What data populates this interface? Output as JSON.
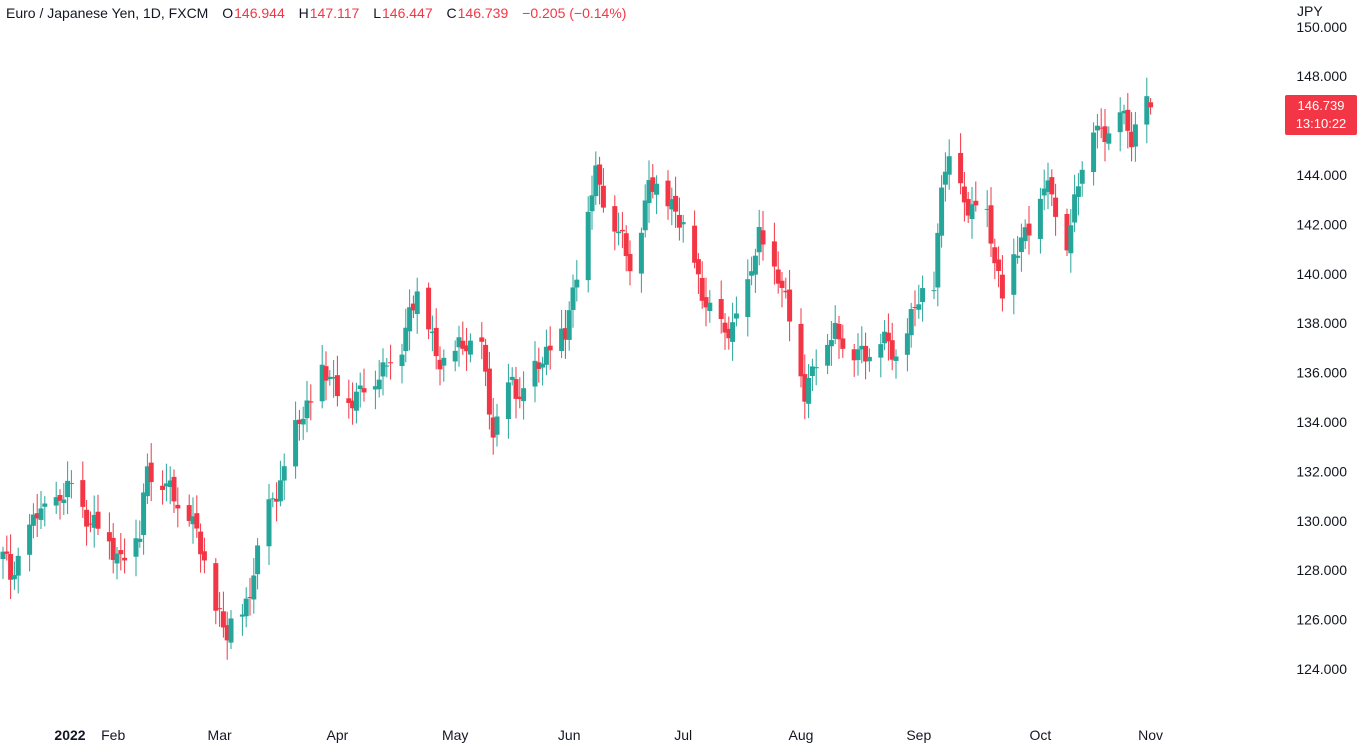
{
  "header": {
    "symbol": "Euro / Japanese Yen, 1D, FXCM",
    "open_label": "O",
    "open": "146.944",
    "high_label": "H",
    "high": "147.117",
    "low_label": "L",
    "low": "146.447",
    "close_label": "C",
    "close": "146.739",
    "change": "−0.205 (−0.14%)"
  },
  "axis": {
    "unit": "JPY"
  },
  "last_price": {
    "value": "146.739",
    "countdown": "13:10:22"
  },
  "colors": {
    "up": "#26a69a",
    "down": "#f23645",
    "axis_text": "#131722",
    "background": "#ffffff"
  },
  "chart_data": {
    "type": "candlestick",
    "title": "Euro / Japanese Yen, 1D, FXCM",
    "ylabel": "JPY",
    "ylim": [
      123,
      150.5
    ],
    "grid": false,
    "y_ticks": [
      "124.000",
      "126.000",
      "128.000",
      "130.000",
      "132.000",
      "134.000",
      "136.000",
      "138.000",
      "140.000",
      "142.000",
      "144.000",
      "146.000",
      "148.000",
      "150.000"
    ],
    "x_ticks": [
      "2022",
      "Feb",
      "Mar",
      "Apr",
      "May",
      "Jun",
      "Jul",
      "Aug",
      "Sep",
      "Oct",
      "Nov"
    ],
    "anchors": [
      [
        "2022-01-03",
        128.5
      ],
      [
        "2022-01-05",
        127.8
      ],
      [
        "2022-01-12",
        130.2
      ],
      [
        "2022-01-18",
        130.9
      ],
      [
        "2022-01-21",
        131.2
      ],
      [
        "2022-01-28",
        129.6
      ],
      [
        "2022-02-03",
        128.6
      ],
      [
        "2022-02-08",
        129.4
      ],
      [
        "2022-02-10",
        132.4
      ],
      [
        "2022-02-14",
        131.4
      ],
      [
        "2022-02-21",
        130.4
      ],
      [
        "2022-02-25",
        128.2
      ],
      [
        "2022-03-03",
        125.3
      ],
      [
        "2022-03-07",
        126.2
      ],
      [
        "2022-03-14",
        130.4
      ],
      [
        "2022-03-21",
        133.5
      ],
      [
        "2022-03-28",
        136.1
      ],
      [
        "2022-03-31",
        135.3
      ],
      [
        "2022-04-06",
        134.9
      ],
      [
        "2022-04-12",
        136.1
      ],
      [
        "2022-04-18",
        137.0
      ],
      [
        "2022-04-20",
        138.6
      ],
      [
        "2022-04-22",
        139.5
      ],
      [
        "2022-04-27",
        136.6
      ],
      [
        "2022-05-02",
        136.8
      ],
      [
        "2022-05-09",
        137.2
      ],
      [
        "2022-05-12",
        133.1
      ],
      [
        "2022-05-17",
        136.1
      ],
      [
        "2022-05-19",
        134.6
      ],
      [
        "2022-05-24",
        136.6
      ],
      [
        "2022-05-31",
        137.6
      ],
      [
        "2022-06-03",
        140.3
      ],
      [
        "2022-06-08",
        143.9
      ],
      [
        "2022-06-13",
        142.1
      ],
      [
        "2022-06-17",
        140.2
      ],
      [
        "2022-06-22",
        143.6
      ],
      [
        "2022-06-29",
        142.8
      ],
      [
        "2022-07-05",
        139.7
      ],
      [
        "2022-07-12",
        137.3
      ],
      [
        "2022-07-18",
        139.4
      ],
      [
        "2022-07-21",
        141.4
      ],
      [
        "2022-07-26",
        140.0
      ],
      [
        "2022-08-02",
        135.4
      ],
      [
        "2022-08-05",
        136.4
      ],
      [
        "2022-08-10",
        137.9
      ],
      [
        "2022-08-15",
        136.6
      ],
      [
        "2022-08-22",
        137.3
      ],
      [
        "2022-08-26",
        136.6
      ],
      [
        "2022-08-31",
        138.6
      ],
      [
        "2022-09-05",
        139.4
      ],
      [
        "2022-09-07",
        143.9
      ],
      [
        "2022-09-09",
        144.2
      ],
      [
        "2022-09-13",
        143.1
      ],
      [
        "2022-09-19",
        142.1
      ],
      [
        "2022-09-23",
        139.3
      ],
      [
        "2022-09-29",
        141.6
      ],
      [
        "2022-10-04",
        143.6
      ],
      [
        "2022-10-10",
        141.5
      ],
      [
        "2022-10-14",
        144.2
      ],
      [
        "2022-10-17",
        146.2
      ],
      [
        "2022-10-21",
        145.6
      ],
      [
        "2022-10-24",
        146.6
      ],
      [
        "2022-10-27",
        145.7
      ],
      [
        "2022-10-31",
        146.9
      ],
      [
        "2022-11-01",
        146.739
      ]
    ]
  }
}
